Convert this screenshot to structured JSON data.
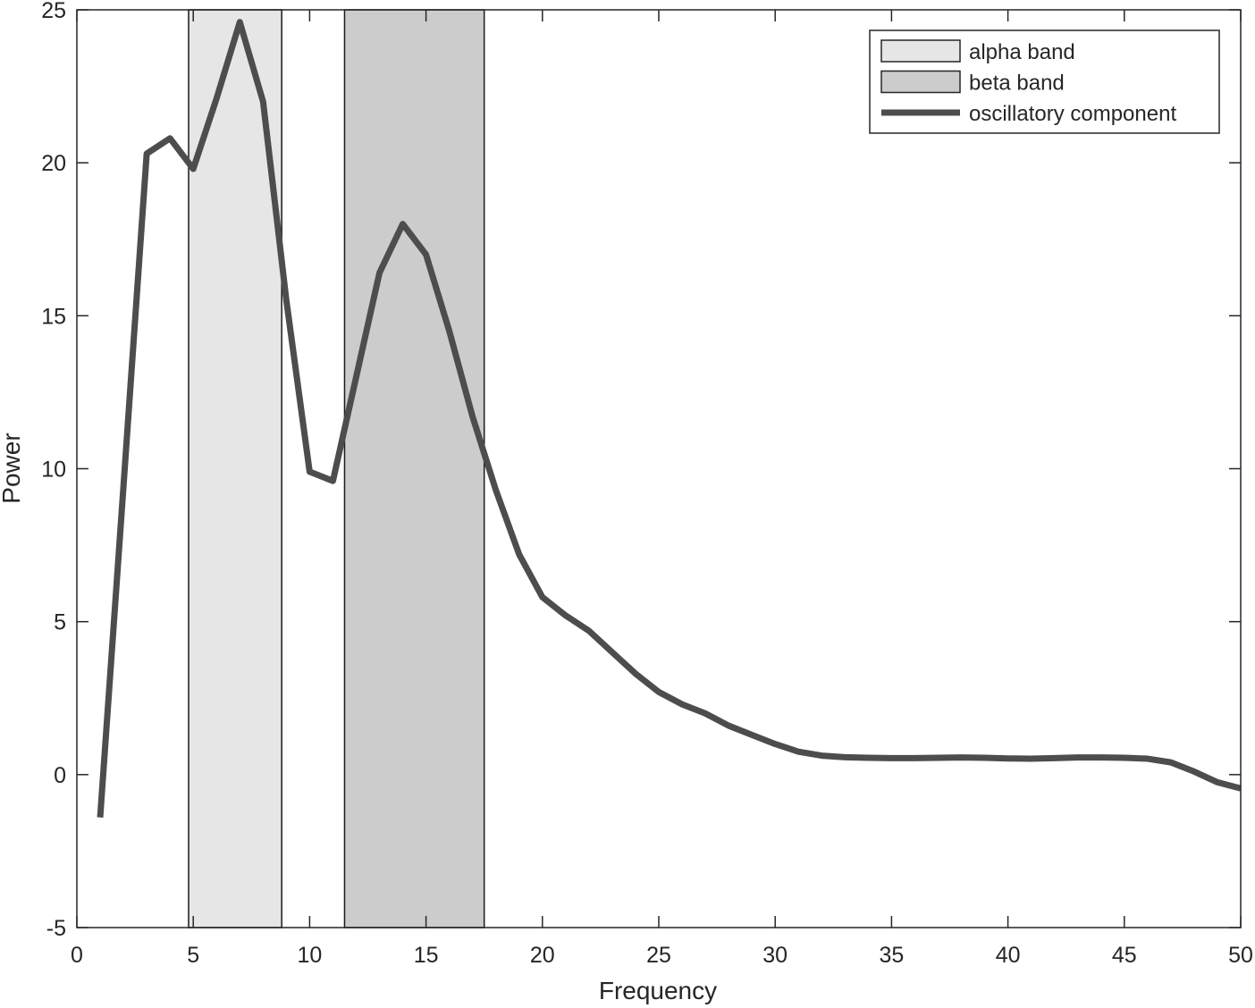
{
  "chart_data": {
    "type": "line",
    "title": "",
    "xlabel": "Frequency",
    "ylabel": "Power",
    "xlim": [
      0,
      50
    ],
    "ylim": [
      -5,
      25
    ],
    "xticks": [
      0,
      5,
      10,
      15,
      20,
      25,
      30,
      35,
      40,
      45,
      50
    ],
    "yticks": [
      -5,
      0,
      5,
      10,
      15,
      20,
      25
    ],
    "grid": false,
    "legend_position": "top-right",
    "bands": [
      {
        "name": "alpha band",
        "x_start": 4.8,
        "x_end": 8.8,
        "color": "#e6e6e6"
      },
      {
        "name": "beta band",
        "x_start": 11.5,
        "x_end": 17.5,
        "color": "#cccccc"
      }
    ],
    "series": [
      {
        "name": "oscillatory component",
        "color": "#4d4d4d",
        "x": [
          1,
          2,
          3,
          4,
          5,
          6,
          7,
          8,
          9,
          10,
          11,
          12,
          13,
          14,
          15,
          16,
          17,
          18,
          19,
          20,
          21,
          22,
          23,
          24,
          25,
          26,
          27,
          28,
          29,
          30,
          31,
          32,
          33,
          34,
          35,
          36,
          37,
          38,
          39,
          40,
          41,
          42,
          43,
          44,
          45,
          46,
          47,
          48,
          49,
          50
        ],
        "y": [
          -1.4,
          9.4,
          20.3,
          20.8,
          19.8,
          22.1,
          24.6,
          22.0,
          15.5,
          9.9,
          9.6,
          13.0,
          16.4,
          18.0,
          17.0,
          14.5,
          11.7,
          9.3,
          7.2,
          5.8,
          5.2,
          4.7,
          4.0,
          3.3,
          2.7,
          2.3,
          2.0,
          1.6,
          1.3,
          1.0,
          0.75,
          0.62,
          0.57,
          0.55,
          0.54,
          0.54,
          0.55,
          0.56,
          0.55,
          0.53,
          0.52,
          0.54,
          0.56,
          0.56,
          0.55,
          0.52,
          0.4,
          0.1,
          -0.25,
          -0.45
        ]
      }
    ]
  }
}
